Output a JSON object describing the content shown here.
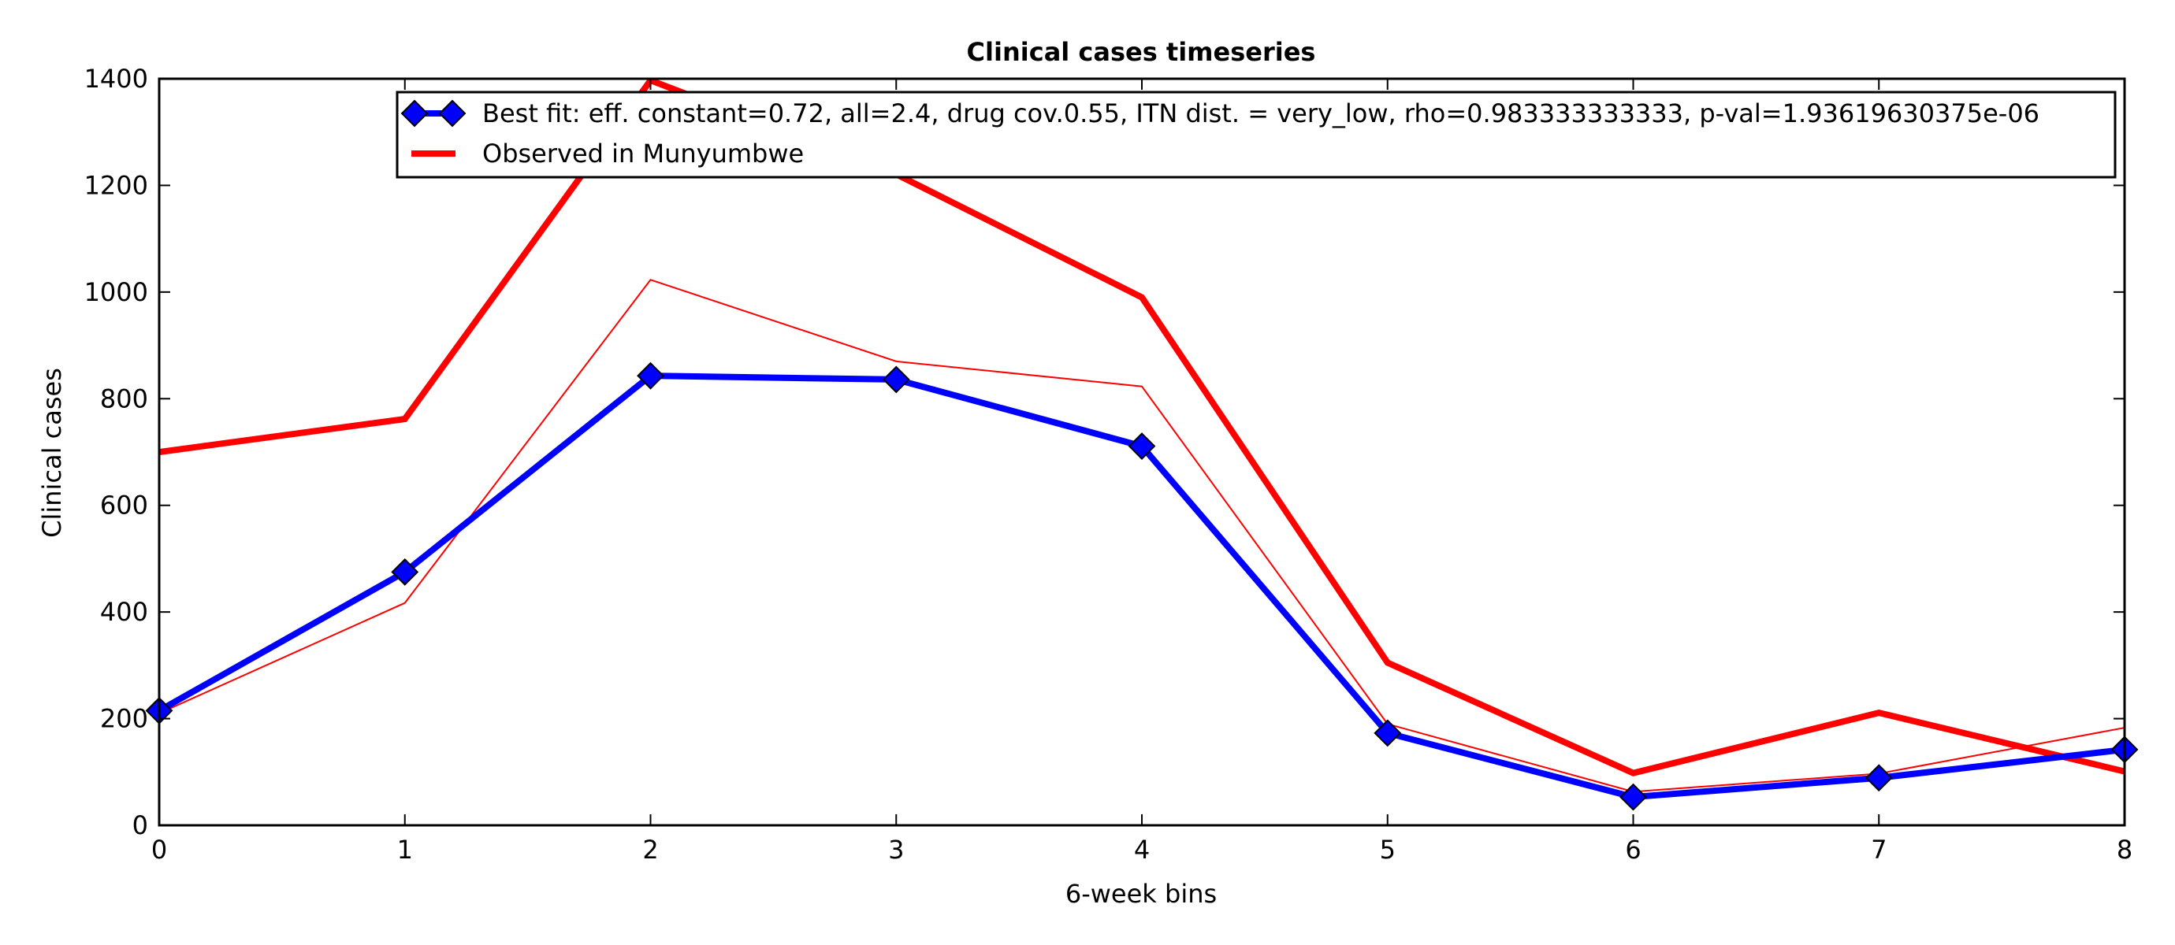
{
  "chart_data": {
    "type": "line",
    "title": "Clinical cases timeseries",
    "xlabel": "6-week bins",
    "ylabel": "Clinical cases",
    "xlim": [
      0,
      8
    ],
    "ylim": [
      0,
      1400
    ],
    "x": [
      0,
      1,
      2,
      3,
      4,
      5,
      6,
      7,
      8
    ],
    "x_ticks": [
      "0",
      "1",
      "2",
      "3",
      "4",
      "5",
      "6",
      "7",
      "8"
    ],
    "y_ticks": [
      "0",
      "200",
      "400",
      "600",
      "800",
      "1000",
      "1200",
      "1400"
    ],
    "legend_position": "top-right",
    "series": [
      {
        "name": "Best fit: eff. constant=0.72, all=2.4, drug cov.0.55, ITN dist. = very_low, rho=0.983333333333, p-val=1.93619630375e-06",
        "role": "best-fit",
        "color": "#0000ff",
        "marker": "diamond",
        "values": [
          215,
          475,
          843,
          836,
          711,
          173,
          53,
          89,
          142
        ]
      },
      {
        "name": "Observed in Munyumbwe",
        "role": "observed",
        "color": "#ff0000",
        "marker": "none",
        "values": [
          700,
          762,
          1397,
          1221,
          990,
          305,
          98,
          211,
          101
        ]
      },
      {
        "role": "thin-red",
        "color": "#ff0000",
        "marker": "none",
        "values": [
          210,
          417,
          1023,
          870,
          823,
          190,
          63,
          97,
          183
        ]
      }
    ]
  }
}
